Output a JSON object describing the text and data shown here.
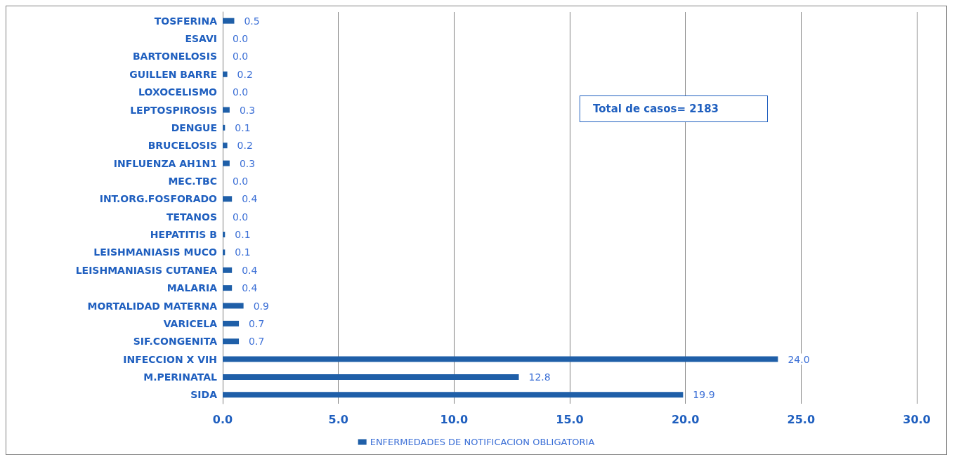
{
  "chart_data": {
    "type": "bar",
    "orientation": "horizontal",
    "categories": [
      "TOSFERINA",
      "ESAVI",
      "BARTONELOSIS",
      "GUILLEN BARRE",
      "LOXOCELISMO",
      "LEPTOSPIROSIS",
      "DENGUE",
      "BRUCELOSIS",
      "INFLUENZA AH1N1",
      "MEC.TBC",
      "INT.ORG.FOSFORADO",
      "TETANOS",
      "HEPATITIS B",
      "LEISHMANIASIS MUCO",
      "LEISHMANIASIS CUTANEA",
      "MALARIA",
      "MORTALIDAD MATERNA",
      "VARICELA",
      "SIF.CONGENITA",
      "INFECCION X VIH",
      "M.PERINATAL",
      "SIDA"
    ],
    "series": [
      {
        "name": "ENFERMEDADES DE NOTIFICACION OBLIGATORIA",
        "color": "#1f5fa8",
        "values": [
          0.5,
          0.0,
          0.0,
          0.2,
          0.0,
          0.3,
          0.1,
          0.2,
          0.3,
          0.0,
          0.4,
          0.0,
          0.1,
          0.1,
          0.4,
          0.4,
          0.9,
          0.7,
          0.7,
          24.0,
          12.8,
          19.9
        ],
        "value_labels": [
          "0.5",
          "0.0",
          "0.0",
          "0.2",
          "0.0",
          "0.3",
          "0.1",
          "0.2",
          "0.3",
          "0.0",
          "0.4",
          "0.0",
          "0.1",
          "0.1",
          "0.4",
          "0.4",
          "0.9",
          "0.7",
          "0.7",
          "24.0",
          "12.8",
          "19.9"
        ]
      }
    ],
    "xlim": [
      0,
      30
    ],
    "xticks": [
      {
        "value": 0,
        "label": "0.0"
      },
      {
        "value": 5,
        "label": "5.0"
      },
      {
        "value": 10,
        "label": "10.0"
      },
      {
        "value": 15,
        "label": "15.0"
      },
      {
        "value": 20,
        "label": "20.0"
      },
      {
        "value": 25,
        "label": "25.0"
      },
      {
        "value": 30,
        "label": "30.0"
      }
    ],
    "grid": "x",
    "legend": "bottom",
    "annotations": [
      "Total de casos= 2183"
    ]
  }
}
